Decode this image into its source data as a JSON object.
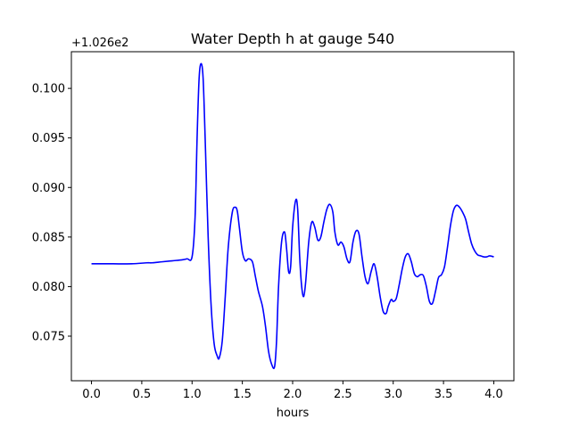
{
  "chart_data": {
    "type": "line",
    "title": "Water Depth h at gauge 540",
    "xlabel": "hours",
    "ylabel": "",
    "y_offset_label": "+1.026e2",
    "xlim": [
      -0.2,
      4.2
    ],
    "ylim": [
      0.0705,
      0.1037
    ],
    "grid": false,
    "x_ticks": [
      0.0,
      0.5,
      1.0,
      1.5,
      2.0,
      2.5,
      3.0,
      3.5,
      4.0
    ],
    "x_tick_labels": [
      "0.0",
      "0.5",
      "1.0",
      "1.5",
      "2.0",
      "2.5",
      "3.0",
      "3.5",
      "4.0"
    ],
    "y_ticks": [
      0.075,
      0.08,
      0.085,
      0.09,
      0.095,
      0.1
    ],
    "y_tick_labels": [
      "0.075",
      "0.080",
      "0.085",
      "0.090",
      "0.095",
      "0.100"
    ],
    "series": [
      {
        "name": "",
        "color": "#0000ff",
        "x": [
          0.0,
          0.2,
          0.4,
          0.55,
          0.6,
          0.7,
          0.8,
          0.9,
          0.95,
          1.0,
          1.03,
          1.05,
          1.07,
          1.09,
          1.11,
          1.13,
          1.16,
          1.19,
          1.22,
          1.25,
          1.27,
          1.3,
          1.33,
          1.36,
          1.4,
          1.43,
          1.45,
          1.47,
          1.5,
          1.53,
          1.56,
          1.6,
          1.63,
          1.66,
          1.7,
          1.73,
          1.76,
          1.79,
          1.82,
          1.84,
          1.86,
          1.89,
          1.92,
          1.94,
          1.96,
          1.98,
          2.0,
          2.03,
          2.05,
          2.07,
          2.09,
          2.11,
          2.13,
          2.16,
          2.19,
          2.22,
          2.25,
          2.28,
          2.31,
          2.34,
          2.37,
          2.4,
          2.42,
          2.45,
          2.48,
          2.51,
          2.54,
          2.57,
          2.6,
          2.63,
          2.66,
          2.69,
          2.72,
          2.75,
          2.78,
          2.81,
          2.84,
          2.87,
          2.9,
          2.93,
          2.95,
          2.98,
          3.0,
          3.03,
          3.06,
          3.09,
          3.12,
          3.15,
          3.18,
          3.21,
          3.24,
          3.27,
          3.3,
          3.33,
          3.36,
          3.39,
          3.42,
          3.45,
          3.48,
          3.51,
          3.54,
          3.57,
          3.6,
          3.63,
          3.66,
          3.69,
          3.72,
          3.75,
          3.78,
          3.81,
          3.84,
          3.87,
          3.9,
          3.93,
          3.96,
          4.0
        ],
        "y": [
          0.0823,
          0.0823,
          0.0823,
          0.0824,
          0.0824,
          0.0825,
          0.0826,
          0.0827,
          0.0828,
          0.083,
          0.087,
          0.095,
          0.101,
          0.1025,
          0.101,
          0.095,
          0.085,
          0.078,
          0.0742,
          0.073,
          0.0728,
          0.0745,
          0.079,
          0.084,
          0.0875,
          0.088,
          0.0876,
          0.086,
          0.0835,
          0.0826,
          0.0828,
          0.0825,
          0.081,
          0.0795,
          0.078,
          0.076,
          0.0735,
          0.0722,
          0.0719,
          0.0745,
          0.08,
          0.0845,
          0.0855,
          0.0838,
          0.0815,
          0.082,
          0.086,
          0.0887,
          0.0878,
          0.083,
          0.08,
          0.079,
          0.0805,
          0.0845,
          0.0865,
          0.086,
          0.0847,
          0.085,
          0.0865,
          0.0878,
          0.0883,
          0.0875,
          0.0855,
          0.0842,
          0.0845,
          0.084,
          0.0828,
          0.0825,
          0.0845,
          0.0856,
          0.0853,
          0.083,
          0.081,
          0.0803,
          0.0815,
          0.0823,
          0.081,
          0.079,
          0.0775,
          0.0773,
          0.078,
          0.0787,
          0.0785,
          0.0788,
          0.0802,
          0.0818,
          0.083,
          0.0833,
          0.0825,
          0.0813,
          0.081,
          0.0812,
          0.0811,
          0.08,
          0.0785,
          0.0783,
          0.0795,
          0.0809,
          0.0812,
          0.082,
          0.084,
          0.0862,
          0.0877,
          0.0882,
          0.088,
          0.0875,
          0.0868,
          0.0855,
          0.0843,
          0.0836,
          0.0832,
          0.0831,
          0.083,
          0.083,
          0.0831,
          0.083
        ]
      }
    ]
  }
}
